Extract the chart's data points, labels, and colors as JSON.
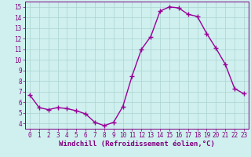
{
  "x": [
    0,
    1,
    2,
    3,
    4,
    5,
    6,
    7,
    8,
    9,
    10,
    11,
    12,
    13,
    14,
    15,
    16,
    17,
    18,
    19,
    20,
    21,
    22,
    23
  ],
  "y": [
    6.7,
    5.5,
    5.3,
    5.5,
    5.4,
    5.2,
    4.9,
    4.1,
    3.8,
    4.1,
    5.6,
    8.5,
    11.0,
    12.2,
    14.6,
    15.0,
    14.9,
    14.3,
    14.1,
    12.5,
    11.1,
    9.6,
    7.3,
    6.8
  ],
  "line_color": "#990099",
  "marker": "+",
  "marker_size": 4,
  "line_width": 1.0,
  "bg_color": "#cff0ee",
  "grid_color": "#aad4d0",
  "xlabel": "Windchill (Refroidissement éolien,°C)",
  "xlabel_fontsize": 6.5,
  "tick_fontsize": 5.5,
  "xlim": [
    -0.5,
    23.5
  ],
  "ylim": [
    3.5,
    15.5
  ],
  "yticks": [
    4,
    5,
    6,
    7,
    8,
    9,
    10,
    11,
    12,
    13,
    14,
    15
  ],
  "xticks": [
    0,
    1,
    2,
    3,
    4,
    5,
    6,
    7,
    8,
    9,
    10,
    11,
    12,
    13,
    14,
    15,
    16,
    17,
    18,
    19,
    20,
    21,
    22,
    23
  ],
  "axis_color": "#800080"
}
